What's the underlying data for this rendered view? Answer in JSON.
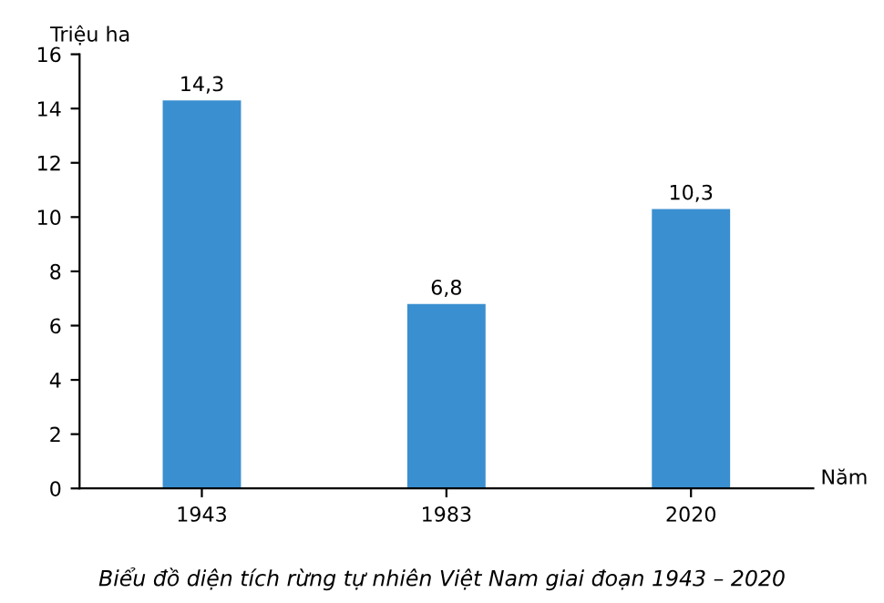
{
  "chart_data": {
    "type": "bar",
    "title": "Biểu đồ diện tích rừng tự nhiên Việt Nam giai đoạn 1943 – 2020",
    "ylabel": "Triệu ha",
    "xlabel": "Năm",
    "categories": [
      "1943",
      "1983",
      "2020"
    ],
    "values": [
      14.3,
      6.8,
      10.3
    ],
    "value_labels": [
      "14,3",
      "6,8",
      "10,3"
    ],
    "color": "#3a8fd0",
    "ylim": [
      0,
      16
    ],
    "yticks": [
      0,
      2,
      4,
      6,
      8,
      10,
      12,
      14,
      16
    ],
    "grid": false
  }
}
